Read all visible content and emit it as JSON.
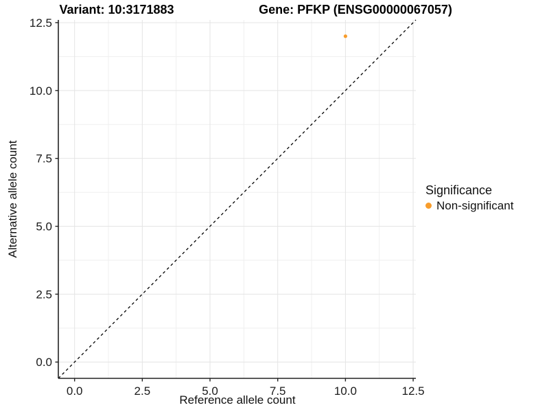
{
  "chart_data": {
    "type": "scatter",
    "title_left": "Variant: 10:3171883",
    "title_right": "Gene: PFKP (ENSG00000067057)",
    "xlabel": "Reference allele count",
    "ylabel": "Alternative allele count",
    "xlim": [
      -0.6,
      12.6
    ],
    "ylim": [
      -0.6,
      12.6
    ],
    "x_ticks": [
      0,
      2.5,
      5,
      7.5,
      10,
      12.5
    ],
    "y_ticks": [
      0,
      2.5,
      5,
      7.5,
      10,
      12.5
    ],
    "x_tick_labels": [
      "0.0",
      "2.5",
      "5.0",
      "7.5",
      "10.0",
      "12.5"
    ],
    "y_tick_labels": [
      "0.0",
      "2.5",
      "5.0",
      "7.5",
      "10.0",
      "12.5"
    ],
    "minor_breaks": [
      1.25,
      3.75,
      6.25,
      8.75,
      11.25
    ],
    "grid": true,
    "points": [
      {
        "x": 10,
        "y": 12,
        "series": "Non-significant"
      }
    ],
    "reference_line": {
      "slope": 1,
      "intercept": 0,
      "style": "dashed",
      "color": "#000000"
    },
    "legend": {
      "title": "Significance",
      "position": "right",
      "items": [
        {
          "label": "Non-significant",
          "color": "#F89D2C"
        }
      ]
    },
    "colors": {
      "point": "#F89D2C",
      "grid_major": "#E4E4E4",
      "grid_minor": "#EFEFEF",
      "axis_line": "#222222",
      "tick_text": "#1A1A1A"
    }
  }
}
